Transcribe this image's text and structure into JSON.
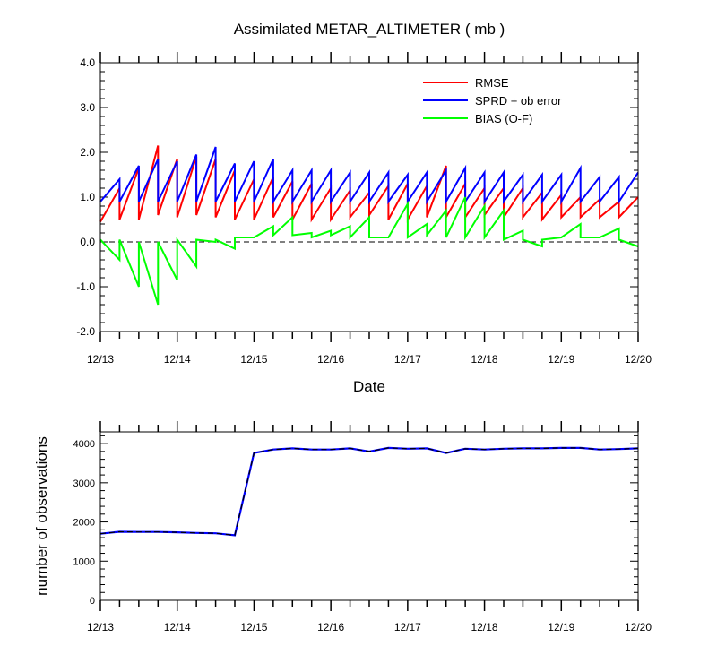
{
  "chart_data": [
    {
      "type": "line",
      "title": "Assimilated METAR_ALTIMETER ( mb )",
      "xlabel": "Date",
      "ylabel": "",
      "xlim": [
        0,
        28
      ],
      "ylim": [
        -2.0,
        4.0
      ],
      "x_tick_labels": [
        "12/13",
        "12/14",
        "12/15",
        "12/16",
        "12/17",
        "12/18",
        "12/19",
        "12/20"
      ],
      "y_tick_labels": [
        "-2.0",
        "-1.0",
        "0.0",
        "1.0",
        "2.0",
        "3.0",
        "4.0"
      ],
      "y_ticks": [
        -2.0,
        -1.0,
        0.0,
        1.0,
        2.0,
        3.0,
        4.0
      ],
      "zero_line": "dashed",
      "legend_position": "top-right",
      "series": [
        {
          "name": "RMSE",
          "color": "#ff0000",
          "values": [
            [
              0.45,
              1.2
            ],
            [
              0.5,
              1.65
            ],
            [
              0.5,
              2.15
            ],
            [
              0.6,
              1.85
            ],
            [
              0.55,
              1.9
            ],
            [
              0.6,
              1.85
            ],
            [
              0.55,
              1.6
            ],
            [
              0.5,
              1.4
            ],
            [
              0.5,
              1.45
            ],
            [
              0.55,
              1.35
            ],
            [
              0.5,
              1.3
            ],
            [
              0.5,
              1.2
            ],
            [
              0.5,
              1.15
            ],
            [
              0.55,
              1.1
            ],
            [
              0.6,
              1.25
            ],
            [
              0.5,
              1.3
            ],
            [
              0.5,
              1.25
            ],
            [
              0.55,
              1.7
            ],
            [
              0.55,
              1.3
            ],
            [
              0.55,
              1.2
            ],
            [
              0.6,
              1.2
            ],
            [
              0.55,
              1.2
            ],
            [
              0.55,
              1.1
            ],
            [
              0.5,
              1.05
            ],
            [
              0.55,
              1.0
            ],
            [
              0.55,
              0.95
            ],
            [
              0.55,
              0.9
            ],
            [
              0.55,
              1.0
            ]
          ]
        },
        {
          "name": "SPRD + ob error",
          "color": "#0000ff",
          "values": [
            [
              0.9,
              1.4
            ],
            [
              0.9,
              1.7
            ],
            [
              0.9,
              1.85
            ],
            [
              0.9,
              1.8
            ],
            [
              0.9,
              1.95
            ],
            [
              0.9,
              2.12
            ],
            [
              0.9,
              1.75
            ],
            [
              0.9,
              1.8
            ],
            [
              0.9,
              1.85
            ],
            [
              0.9,
              1.6
            ],
            [
              0.9,
              1.6
            ],
            [
              0.9,
              1.6
            ],
            [
              0.9,
              1.55
            ],
            [
              0.9,
              1.55
            ],
            [
              0.9,
              1.55
            ],
            [
              0.9,
              1.5
            ],
            [
              0.9,
              1.55
            ],
            [
              0.9,
              1.6
            ],
            [
              0.9,
              1.65
            ],
            [
              0.9,
              1.55
            ],
            [
              0.9,
              1.55
            ],
            [
              0.9,
              1.5
            ],
            [
              0.9,
              1.5
            ],
            [
              0.9,
              1.5
            ],
            [
              0.9,
              1.65
            ],
            [
              0.9,
              1.45
            ],
            [
              0.9,
              1.45
            ],
            [
              0.9,
              1.55
            ]
          ]
        },
        {
          "name": "BIAS (O-F)",
          "color": "#00ff00",
          "values": [
            [
              0.05,
              -0.4
            ],
            [
              0.05,
              -1.0
            ],
            [
              0.0,
              -1.4
            ],
            [
              0.0,
              -0.85
            ],
            [
              0.05,
              -0.55
            ],
            [
              0.05,
              0.0
            ],
            [
              0.05,
              -0.15
            ],
            [
              0.1,
              0.1
            ],
            [
              0.1,
              0.35
            ],
            [
              0.15,
              0.55
            ],
            [
              0.15,
              0.2
            ],
            [
              0.1,
              0.25
            ],
            [
              0.15,
              0.35
            ],
            [
              0.1,
              0.55
            ],
            [
              0.1,
              0.1
            ],
            [
              0.1,
              0.85
            ],
            [
              0.1,
              0.4
            ],
            [
              0.15,
              0.7
            ],
            [
              0.1,
              1.0
            ],
            [
              0.1,
              0.8
            ],
            [
              0.1,
              0.7
            ],
            [
              0.05,
              0.25
            ],
            [
              0.05,
              -0.1
            ],
            [
              0.05,
              0.1
            ],
            [
              0.1,
              0.4
            ],
            [
              0.1,
              0.1
            ],
            [
              0.1,
              0.3
            ],
            [
              0.05,
              -0.1
            ]
          ]
        }
      ]
    },
    {
      "type": "line",
      "title": "",
      "xlabel": "",
      "ylabel": "number of observations",
      "xlim": [
        0,
        28
      ],
      "ylim": [
        0,
        4300
      ],
      "x_tick_labels": [
        "12/13",
        "12/14",
        "12/15",
        "12/16",
        "12/17",
        "12/18",
        "12/19",
        "12/20"
      ],
      "y_tick_labels": [
        "0",
        "1000",
        "2000",
        "3000",
        "4000"
      ],
      "y_ticks": [
        0,
        1000,
        2000,
        3000,
        4000
      ],
      "series": [
        {
          "color": "#0000ff",
          "style": "solid",
          "x": [
            0,
            1,
            2,
            3,
            4,
            5,
            6,
            7,
            8,
            9,
            10,
            11,
            12,
            13,
            14,
            15,
            16,
            17,
            18,
            19,
            20,
            21,
            22,
            23,
            24,
            25,
            26,
            27,
            28
          ],
          "values": [
            1700,
            1750,
            1745,
            1745,
            1735,
            1720,
            1710,
            1660,
            3760,
            3850,
            3880,
            3850,
            3850,
            3880,
            3800,
            3890,
            3870,
            3880,
            3760,
            3870,
            3850,
            3870,
            3880,
            3880,
            3890,
            3890,
            3850,
            3860,
            3880
          ]
        },
        {
          "color": "#000000",
          "style": "dashed",
          "x": [
            0,
            1,
            2,
            3,
            4,
            5,
            6,
            7,
            8,
            9,
            10,
            11,
            12,
            13,
            14,
            15,
            16,
            17,
            18,
            19,
            20,
            21,
            22,
            23,
            24,
            25,
            26,
            27,
            28
          ],
          "values": [
            1700,
            1750,
            1745,
            1745,
            1735,
            1720,
            1710,
            1660,
            3760,
            3850,
            3880,
            3850,
            3850,
            3880,
            3800,
            3890,
            3870,
            3880,
            3760,
            3870,
            3850,
            3870,
            3880,
            3880,
            3890,
            3890,
            3850,
            3860,
            3880
          ]
        }
      ]
    }
  ]
}
